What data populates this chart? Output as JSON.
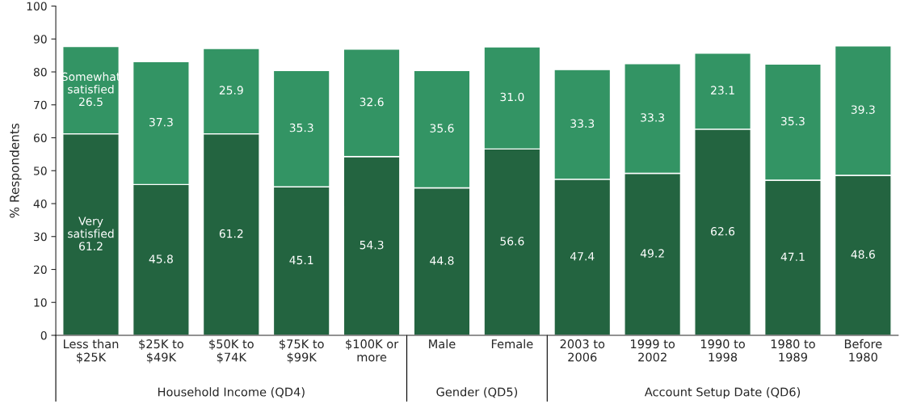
{
  "chart_data": {
    "type": "bar",
    "stacked": true,
    "ylabel": "% Respondents",
    "categories": [
      "Less than\n$25K",
      "$25K to\n$49K",
      "$50K to\n$74K",
      "$75K to\n$99K",
      "$100K or\nmore",
      "Male",
      "Female",
      "2003 to\n2006",
      "1999 to\n2002",
      "1990 to\n1998",
      "1980 to\n1989",
      "Before\n1980"
    ],
    "series": [
      {
        "name": "Very\nsatisfied",
        "color": "#236440",
        "values": [
          61.2,
          45.8,
          61.2,
          45.1,
          54.3,
          44.8,
          56.6,
          47.4,
          49.2,
          62.6,
          47.1,
          48.6
        ],
        "value_labels": [
          "61.2",
          "45.8",
          "61.2",
          "45.1",
          "54.3",
          "44.8",
          "56.6",
          "47.4",
          "49.2",
          "62.6",
          "47.1",
          "48.6"
        ]
      },
      {
        "name": "Somewhat\nsatisfied",
        "color": "#339464",
        "values": [
          26.5,
          37.3,
          25.9,
          35.3,
          32.6,
          35.6,
          31.0,
          33.3,
          33.3,
          23.1,
          35.3,
          39.3
        ],
        "value_labels": [
          "26.5",
          "37.3",
          "25.9",
          "35.3",
          "32.6",
          "35.6",
          "31.0",
          "33.3",
          "33.3",
          "23.1",
          "35.3",
          "39.3"
        ]
      }
    ],
    "annotations": [
      "Household Income (QD4)",
      "Gender (QD5)",
      "Account Setup Date (QD6)"
    ],
    "ylim": [
      0,
      100
    ],
    "yticks": [
      0,
      10,
      20,
      30,
      40,
      50,
      60,
      70,
      80,
      90,
      100
    ],
    "grid": false,
    "legend": false
  }
}
